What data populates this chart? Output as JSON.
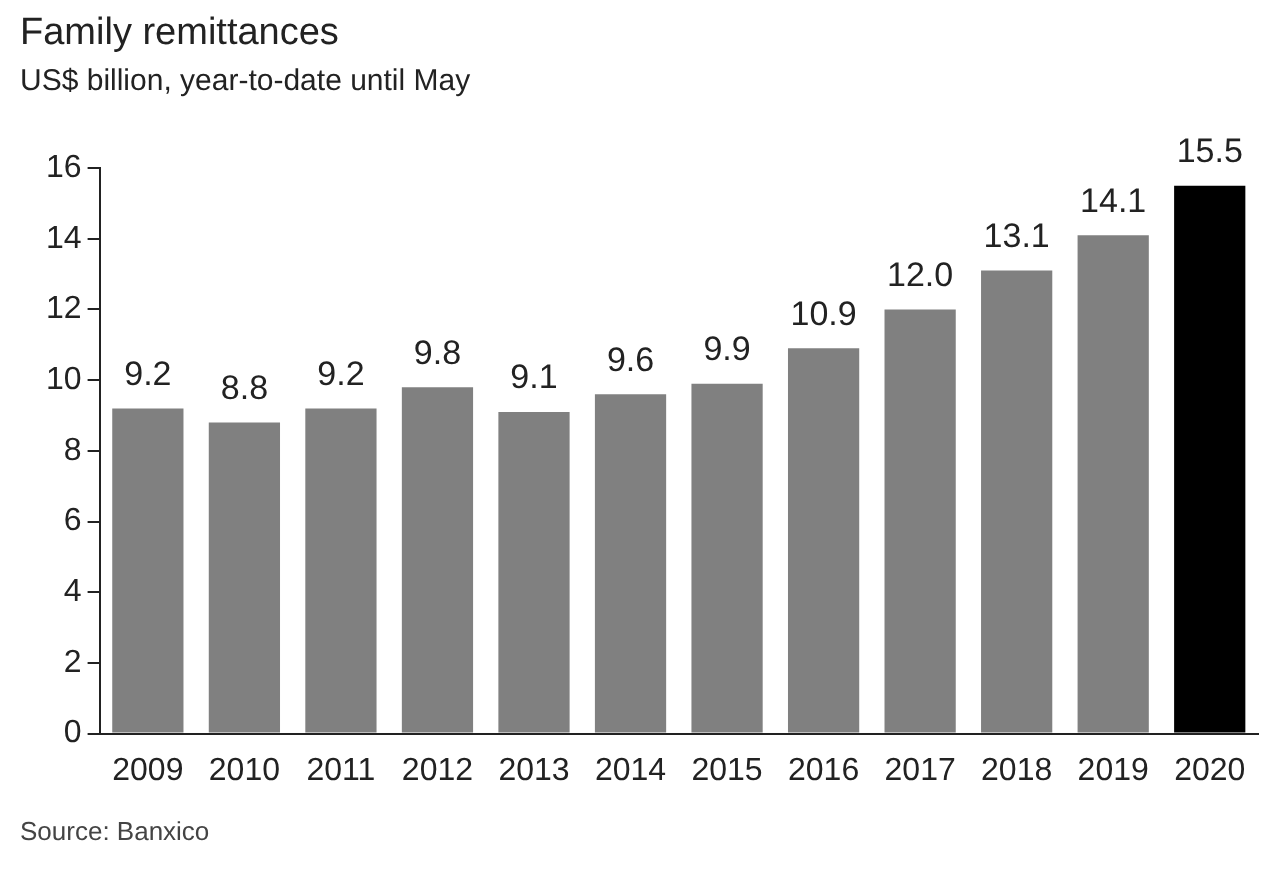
{
  "chart_data": {
    "type": "bar",
    "title": "Family remittances",
    "subtitle": "US$ billion, year-to-date until May",
    "categories": [
      "2009",
      "2010",
      "2011",
      "2012",
      "2013",
      "2014",
      "2015",
      "2016",
      "2017",
      "2018",
      "2019",
      "2020"
    ],
    "values": [
      9.2,
      8.8,
      9.2,
      9.8,
      9.1,
      9.6,
      9.9,
      10.9,
      12.0,
      13.1,
      14.1,
      15.5
    ],
    "colors": [
      "#808080",
      "#808080",
      "#808080",
      "#808080",
      "#808080",
      "#808080",
      "#808080",
      "#808080",
      "#808080",
      "#808080",
      "#808080",
      "#000000"
    ],
    "value_labels": [
      "9.2",
      "8.8",
      "9.2",
      "9.8",
      "9.1",
      "9.6",
      "9.9",
      "10.9",
      "12.0",
      "13.1",
      "14.1",
      "15.5"
    ],
    "ylim": [
      0,
      16
    ],
    "yticks": [
      0,
      2,
      4,
      6,
      8,
      10,
      12,
      14,
      16
    ],
    "annotations": [
      "Source: Banxico"
    ]
  }
}
